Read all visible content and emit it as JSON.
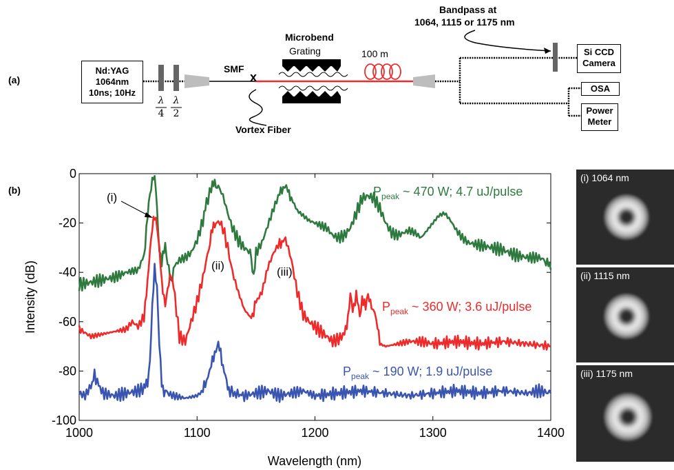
{
  "setup": {
    "panel_label": "(a)",
    "laser": [
      "Nd:YAG",
      "1064nm",
      "10ns; 10Hz"
    ],
    "waveplate_numerators": [
      "λ",
      "λ"
    ],
    "waveplate_denominators": [
      "4",
      "2"
    ],
    "smf_label": "SMF",
    "splice_mark": "x",
    "grating_title": "Microbend",
    "grating_subtitle": "Grating",
    "coil_label": "100 m",
    "vortex_label": "Vortex Fiber",
    "bandpass_title": "Bandpass at",
    "bandpass_wavelengths": "1064, 1115 or 1175 nm",
    "camera": [
      "Si CCD",
      "Camera"
    ],
    "osa": "OSA",
    "power_meter": [
      "Power",
      "Meter"
    ]
  },
  "plot": {
    "panel_label": "(b)"
  },
  "chart_data": {
    "type": "line",
    "title": "",
    "xlabel": "Wavelength (nm)",
    "ylabel": "Intensity (dB)",
    "xlim": [
      1000,
      1400
    ],
    "ylim": [
      -100,
      0
    ],
    "xticks": [
      "1000",
      "1100",
      "1200",
      "1300",
      "1400"
    ],
    "yticks": [
      "0",
      "-20",
      "-40",
      "-60",
      "-80",
      "-100"
    ],
    "grid": false,
    "colors": {
      "green": "#2e7a3e",
      "red": "#ee2b2b",
      "blue": "#3a55b0"
    },
    "series": [
      {
        "label_main": "P",
        "label_sub": "peak",
        "label_rest": " ~ 470 W; 4.7 uJ/pulse",
        "color": "#2e7a3e",
        "x": [
          1000,
          1010,
          1020,
          1030,
          1040,
          1050,
          1055,
          1058,
          1060,
          1062,
          1063,
          1065,
          1068,
          1070,
          1073,
          1075,
          1078,
          1080,
          1085,
          1090,
          1095,
          1100,
          1105,
          1108,
          1112,
          1115,
          1118,
          1122,
          1126,
          1130,
          1135,
          1140,
          1145,
          1148,
          1150,
          1155,
          1160,
          1165,
          1170,
          1173,
          1177,
          1180,
          1185,
          1190,
          1195,
          1200,
          1205,
          1210,
          1215,
          1220,
          1225,
          1230,
          1235,
          1240,
          1245,
          1250,
          1255,
          1260,
          1265,
          1270,
          1275,
          1280,
          1285,
          1290,
          1295,
          1300,
          1305,
          1310,
          1315,
          1320,
          1325,
          1330,
          1340,
          1350,
          1360,
          1370,
          1380,
          1390,
          1395,
          1398,
          1400
        ],
        "y": [
          -45,
          -44,
          -43,
          -42,
          -40,
          -39,
          -33,
          -18,
          -8,
          -2,
          -1,
          -6,
          -30,
          -37,
          -28,
          -36,
          -45,
          -38,
          -35,
          -34,
          -32,
          -27,
          -19,
          -12,
          -6,
          -4,
          -5,
          -9,
          -16,
          -22,
          -27,
          -30,
          -32,
          -41,
          -32,
          -28,
          -21,
          -14,
          -8,
          -5,
          -6,
          -10,
          -15,
          -17,
          -19,
          -20,
          -21,
          -22,
          -25,
          -26,
          -25,
          -22,
          -16,
          -10,
          -9,
          -10,
          -14,
          -20,
          -24,
          -25,
          -24,
          -23,
          -24,
          -26,
          -23,
          -20,
          -17,
          -16,
          -19,
          -23,
          -26,
          -28,
          -29,
          -30,
          -31,
          -33,
          -34,
          -34,
          -35,
          -37,
          -39
        ]
      },
      {
        "label_main": "P",
        "label_sub": "peak",
        "label_rest": " ~ 360 W; 3.6 uJ/pulse",
        "color": "#ee2b2b",
        "x": [
          1000,
          1010,
          1020,
          1030,
          1040,
          1045,
          1050,
          1055,
          1058,
          1060,
          1062,
          1064,
          1066,
          1068,
          1070,
          1073,
          1075,
          1078,
          1080,
          1085,
          1090,
          1095,
          1100,
          1105,
          1110,
          1112,
          1115,
          1118,
          1122,
          1126,
          1130,
          1135,
          1140,
          1145,
          1148,
          1150,
          1155,
          1160,
          1165,
          1170,
          1173,
          1176,
          1180,
          1185,
          1190,
          1195,
          1200,
          1205,
          1210,
          1215,
          1220,
          1225,
          1228,
          1230,
          1232,
          1235,
          1238,
          1240,
          1243,
          1245,
          1248,
          1252,
          1255,
          1260,
          1270,
          1280,
          1290,
          1300,
          1320,
          1340,
          1360,
          1380,
          1400
        ],
        "y": [
          -63,
          -66,
          -65,
          -64,
          -63,
          -60,
          -62,
          -58,
          -45,
          -30,
          -22,
          -18,
          -20,
          -30,
          -45,
          -52,
          -48,
          -40,
          -45,
          -66,
          -68,
          -60,
          -52,
          -42,
          -30,
          -25,
          -20,
          -19,
          -22,
          -30,
          -40,
          -48,
          -55,
          -58,
          -56,
          -52,
          -48,
          -38,
          -32,
          -28,
          -27,
          -28,
          -35,
          -48,
          -57,
          -60,
          -62,
          -64,
          -66,
          -68,
          -67,
          -65,
          -58,
          -50,
          -55,
          -49,
          -58,
          -50,
          -55,
          -48,
          -54,
          -58,
          -69,
          -70,
          -69,
          -68,
          -68,
          -69,
          -68,
          -69,
          -68,
          -69,
          -70
        ]
      },
      {
        "label_main": "P",
        "label_sub": "peak",
        "label_rest": " ~ 190 W; 1.9 uJ/pulse",
        "color": "#3a55b0",
        "x": [
          1000,
          1005,
          1010,
          1013,
          1020,
          1030,
          1040,
          1050,
          1055,
          1058,
          1060,
          1062,
          1064,
          1066,
          1068,
          1070,
          1072,
          1075,
          1080,
          1090,
          1100,
          1105,
          1108,
          1112,
          1115,
          1118,
          1120,
          1122,
          1125,
          1128,
          1132,
          1140,
          1150,
          1160,
          1170,
          1180,
          1190,
          1200,
          1220,
          1240,
          1260,
          1280,
          1300,
          1320,
          1340,
          1360,
          1380,
          1390,
          1400
        ],
        "y": [
          -89,
          -90,
          -86,
          -82,
          -89,
          -90,
          -89,
          -88,
          -87,
          -85,
          -75,
          -55,
          -38,
          -45,
          -70,
          -85,
          -88,
          -89,
          -90,
          -91,
          -90,
          -88,
          -84,
          -78,
          -72,
          -70,
          -72,
          -78,
          -85,
          -88,
          -89,
          -90,
          -89,
          -88,
          -90,
          -89,
          -88,
          -90,
          -89,
          -88,
          -89,
          -90,
          -89,
          -88,
          -89,
          -88,
          -89,
          -88,
          -89
        ]
      }
    ],
    "annotations": [
      "(i)",
      "(ii)",
      "(iii)"
    ]
  },
  "thumbnails": [
    {
      "label": "(i) 1064 nm"
    },
    {
      "label": "(ii) 1115 nm"
    },
    {
      "label": "(iii) 1175 nm"
    }
  ]
}
